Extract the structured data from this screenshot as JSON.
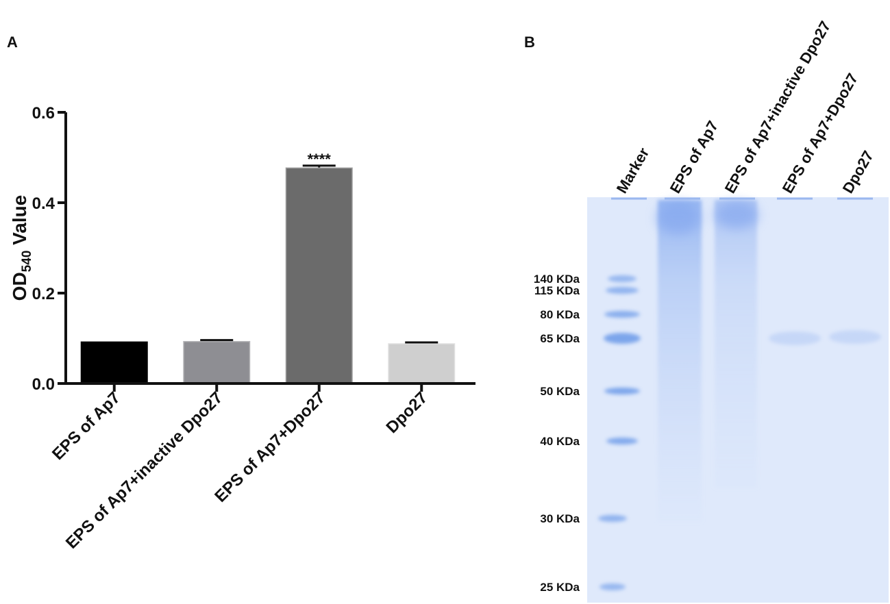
{
  "panels": {
    "a_label": "A",
    "b_label": "B"
  },
  "chart_data": {
    "type": "bar",
    "categories": [
      "EPS of Ap7",
      "EPS of Ap7+inactive Dpo27",
      "EPS of Ap7+Dpo27",
      "Dpo27"
    ],
    "values": [
      0.093,
      0.094,
      0.478,
      0.089
    ],
    "errors": [
      0.0,
      0.002,
      0.004,
      0.002
    ],
    "bar_colors": [
      "#000000",
      "#8e8e93",
      "#6b6b6b",
      "#cfcfcf"
    ],
    "annotations": [
      {
        "category": "EPS of Ap7+Dpo27",
        "text": "****"
      }
    ],
    "ylabel_main": "OD",
    "ylabel_sub": "540",
    "ylabel_rest": " Value",
    "ylim": [
      0,
      0.6
    ],
    "yticks": [
      "0.0",
      "0.2",
      "0.4",
      "0.6"
    ],
    "grid": false
  },
  "gel": {
    "lanes": [
      "Marker",
      "EPS of Ap7",
      "EPS of Ap7+inactive Dpo27",
      "EPS of Ap7+Dpo27",
      "Dpo27"
    ],
    "marker_sizes": [
      "140 KDa",
      "115 KDa",
      "80 KDa",
      "65 KDa",
      "50 KDa",
      "40 KDa",
      "30 KDa",
      "25 KDa"
    ],
    "background_color": "#dfe9fb",
    "band_color": "#5b8fe6"
  }
}
